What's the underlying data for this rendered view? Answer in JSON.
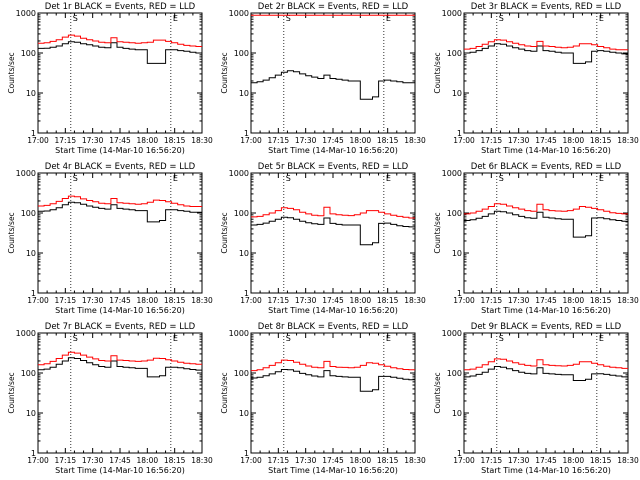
{
  "figure": {
    "description_free": true
  },
  "chart_data": [
    {
      "type": "line",
      "title": "Det 1r BLACK = Events, RED = LLD",
      "xlabel": "Start Time (14-Mar-10 16:56:20)",
      "ylabel": "Counts/sec",
      "yscale": "log",
      "ylim": [
        1,
        1000
      ],
      "yticks": [
        "1",
        "10",
        "100",
        "1000"
      ],
      "xlim": [
        0,
        100
      ],
      "xticks": [
        "17:00",
        "17:15",
        "17:30",
        "17:45",
        "18:00",
        "18:15",
        "18:30"
      ],
      "markers": [
        {
          "x": 20,
          "label": "S"
        },
        {
          "x": 81,
          "label": "E"
        }
      ],
      "series": [
        {
          "name": "Events",
          "color": "#000000",
          "values": [
            130,
            132,
            140,
            150,
            170,
            190,
            185,
            170,
            160,
            150,
            140,
            135,
            180,
            140,
            130,
            125,
            120,
            120,
            55,
            55,
            55,
            120,
            120,
            115,
            110,
            105,
            100
          ]
        },
        {
          "name": "LLD",
          "color": "#ff0000",
          "values": [
            175,
            180,
            195,
            215,
            250,
            280,
            265,
            235,
            215,
            200,
            185,
            180,
            240,
            190,
            185,
            180,
            175,
            180,
            185,
            210,
            210,
            195,
            180,
            165,
            155,
            150,
            145
          ]
        }
      ]
    },
    {
      "type": "line",
      "title": "Det 2r BLACK = Events, RED = LLD",
      "xlabel": "Start Time (14-Mar-10 16:56:20)",
      "ylabel": "Counts/sec",
      "yscale": "log",
      "ylim": [
        1,
        1000
      ],
      "yticks": [
        "1",
        "10",
        "100",
        "1000"
      ],
      "xlim": [
        0,
        100
      ],
      "xticks": [
        "17:00",
        "17:15",
        "17:30",
        "17:45",
        "18:00",
        "18:15",
        "18:30"
      ],
      "markers": [
        {
          "x": 20,
          "label": "S"
        },
        {
          "x": 81,
          "label": "E"
        }
      ],
      "series": [
        {
          "name": "Events",
          "color": "#000000",
          "values": [
            18,
            19,
            21,
            24,
            28,
            33,
            36,
            34,
            30,
            27,
            25,
            23,
            28,
            23,
            22,
            21,
            20,
            20,
            7,
            7,
            8,
            20,
            21,
            20,
            19,
            18,
            18
          ]
        },
        {
          "name": "LLD",
          "color": "#ff0000",
          "values": [
            880,
            880,
            880,
            880,
            880,
            880,
            880,
            880,
            880,
            880,
            880,
            880,
            880,
            880,
            880,
            880,
            880,
            880,
            880,
            880,
            880,
            880,
            880,
            880,
            880,
            880,
            880
          ]
        }
      ]
    },
    {
      "type": "line",
      "title": "Det 3r BLACK = Events, RED = LLD",
      "xlabel": "Start Time (14-Mar-10 16:56:20)",
      "ylabel": "Counts/sec",
      "yscale": "log",
      "ylim": [
        1,
        1000
      ],
      "yticks": [
        "1",
        "10",
        "100",
        "1000"
      ],
      "xlim": [
        0,
        100
      ],
      "xticks": [
        "17:00",
        "17:15",
        "17:30",
        "17:45",
        "18:00",
        "18:15",
        "18:30"
      ],
      "markers": [
        {
          "x": 20,
          "label": "S"
        },
        {
          "x": 81,
          "label": "E"
        }
      ],
      "series": [
        {
          "name": "Events",
          "color": "#000000",
          "values": [
            100,
            105,
            115,
            130,
            150,
            170,
            165,
            150,
            135,
            125,
            115,
            110,
            150,
            115,
            110,
            105,
            100,
            100,
            55,
            55,
            60,
            110,
            115,
            110,
            105,
            100,
            95
          ]
        },
        {
          "name": "LLD",
          "color": "#ff0000",
          "values": [
            125,
            130,
            145,
            165,
            190,
            215,
            210,
            190,
            175,
            160,
            150,
            145,
            195,
            150,
            145,
            140,
            135,
            140,
            150,
            170,
            170,
            160,
            145,
            135,
            125,
            120,
            120
          ]
        }
      ]
    },
    {
      "type": "line",
      "title": "Det 4r BLACK = Events, RED = LLD",
      "xlabel": "Start Time (14-Mar-10 16:56:20)",
      "ylabel": "Counts/sec",
      "yscale": "log",
      "ylim": [
        1,
        1000
      ],
      "yticks": [
        "1",
        "10",
        "100",
        "1000"
      ],
      "xlim": [
        0,
        100
      ],
      "xticks": [
        "17:00",
        "17:15",
        "17:30",
        "17:45",
        "18:00",
        "18:15",
        "18:30"
      ],
      "markers": [
        {
          "x": 20,
          "label": "S"
        },
        {
          "x": 81,
          "label": "E"
        }
      ],
      "series": [
        {
          "name": "Events",
          "color": "#000000",
          "values": [
            110,
            112,
            120,
            135,
            160,
            185,
            180,
            165,
            150,
            140,
            130,
            125,
            160,
            130,
            125,
            120,
            115,
            115,
            60,
            60,
            65,
            120,
            120,
            115,
            110,
            105,
            105
          ]
        },
        {
          "name": "LLD",
          "color": "#ff0000",
          "values": [
            150,
            155,
            170,
            195,
            230,
            265,
            255,
            225,
            205,
            190,
            175,
            170,
            230,
            180,
            175,
            170,
            165,
            170,
            185,
            210,
            205,
            190,
            175,
            160,
            150,
            145,
            145
          ]
        }
      ]
    },
    {
      "type": "line",
      "title": "Det 5r BLACK = Events, RED = LLD",
      "xlabel": "Start Time (14-Mar-10 16:56:20)",
      "ylabel": "Counts/sec",
      "yscale": "log",
      "ylim": [
        1,
        1000
      ],
      "yticks": [
        "1",
        "10",
        "100",
        "1000"
      ],
      "xlim": [
        0,
        100
      ],
      "xticks": [
        "17:00",
        "17:15",
        "17:30",
        "17:45",
        "18:00",
        "18:15",
        "18:30"
      ],
      "markers": [
        {
          "x": 20,
          "label": "S"
        },
        {
          "x": 81,
          "label": "E"
        }
      ],
      "series": [
        {
          "name": "Events",
          "color": "#000000",
          "values": [
            50,
            52,
            56,
            62,
            70,
            78,
            76,
            70,
            62,
            57,
            54,
            52,
            75,
            55,
            52,
            50,
            50,
            50,
            16,
            16,
            18,
            55,
            56,
            52,
            48,
            46,
            45
          ]
        },
        {
          "name": "LLD",
          "color": "#ff0000",
          "values": [
            80,
            82,
            90,
            100,
            115,
            135,
            130,
            120,
            105,
            95,
            88,
            85,
            140,
            95,
            90,
            88,
            86,
            90,
            100,
            115,
            115,
            105,
            95,
            88,
            82,
            78,
            75
          ]
        }
      ]
    },
    {
      "type": "line",
      "title": "Det 6r BLACK = Events, RED = LLD",
      "xlabel": "Start Time (14-Mar-10 16:56:20)",
      "ylabel": "Counts/sec",
      "yscale": "log",
      "ylim": [
        1,
        1000
      ],
      "yticks": [
        "1",
        "10",
        "100",
        "1000"
      ],
      "xlim": [
        0,
        100
      ],
      "xticks": [
        "17:00",
        "17:15",
        "17:30",
        "17:45",
        "18:00",
        "18:15",
        "18:30"
      ],
      "markers": [
        {
          "x": 20,
          "label": "S"
        },
        {
          "x": 81,
          "label": "E"
        }
      ],
      "series": [
        {
          "name": "Events",
          "color": "#000000",
          "values": [
            65,
            68,
            74,
            82,
            95,
            110,
            108,
            100,
            90,
            82,
            76,
            74,
            105,
            78,
            75,
            72,
            70,
            70,
            25,
            25,
            27,
            75,
            76,
            72,
            68,
            65,
            62
          ]
        },
        {
          "name": "LLD",
          "color": "#ff0000",
          "values": [
            95,
            100,
            110,
            125,
            145,
            170,
            165,
            150,
            135,
            125,
            115,
            110,
            165,
            120,
            115,
            112,
            110,
            115,
            125,
            145,
            140,
            130,
            120,
            110,
            102,
            98,
            95
          ]
        }
      ]
    },
    {
      "type": "line",
      "title": "Det 7r BLACK = Events, RED = LLD",
      "xlabel": "Start Time (14-Mar-10 16:56:20)",
      "ylabel": "Counts/sec",
      "yscale": "log",
      "ylim": [
        1,
        1000
      ],
      "yticks": [
        "1",
        "10",
        "100",
        "1000"
      ],
      "xlim": [
        0,
        100
      ],
      "xticks": [
        "17:00",
        "17:15",
        "17:30",
        "17:45",
        "18:00",
        "18:15",
        "18:30"
      ],
      "markers": [
        {
          "x": 20,
          "label": "S"
        },
        {
          "x": 81,
          "label": "E"
        }
      ],
      "series": [
        {
          "name": "Events",
          "color": "#000000",
          "values": [
            120,
            125,
            140,
            165,
            200,
            240,
            230,
            205,
            180,
            160,
            145,
            140,
            200,
            145,
            140,
            135,
            130,
            130,
            80,
            80,
            85,
            140,
            140,
            135,
            128,
            122,
            118
          ]
        },
        {
          "name": "LLD",
          "color": "#ff0000",
          "values": [
            160,
            170,
            195,
            230,
            280,
            330,
            315,
            280,
            250,
            225,
            205,
            200,
            270,
            210,
            205,
            200,
            195,
            200,
            210,
            235,
            230,
            215,
            200,
            185,
            175,
            170,
            165
          ]
        }
      ]
    },
    {
      "type": "line",
      "title": "Det 8r BLACK = Events, RED = LLD",
      "xlabel": "Start Time (14-Mar-10 16:56:20)",
      "ylabel": "Counts/sec",
      "yscale": "log",
      "ylim": [
        1,
        1000
      ],
      "yticks": [
        "1",
        "10",
        "100",
        "1000"
      ],
      "xlim": [
        0,
        100
      ],
      "xticks": [
        "17:00",
        "17:15",
        "17:30",
        "17:45",
        "18:00",
        "18:15",
        "18:30"
      ],
      "markers": [
        {
          "x": 20,
          "label": "S"
        },
        {
          "x": 81,
          "label": "E"
        }
      ],
      "series": [
        {
          "name": "Events",
          "color": "#000000",
          "values": [
            75,
            78,
            85,
            95,
            108,
            122,
            120,
            110,
            98,
            90,
            84,
            80,
            115,
            85,
            82,
            80,
            78,
            78,
            35,
            35,
            38,
            82,
            82,
            78,
            74,
            70,
            68
          ]
        },
        {
          "name": "LLD",
          "color": "#ff0000",
          "values": [
            115,
            120,
            135,
            155,
            180,
            210,
            205,
            185,
            165,
            150,
            140,
            135,
            195,
            145,
            140,
            138,
            135,
            140,
            155,
            180,
            175,
            160,
            148,
            135,
            128,
            122,
            120
          ]
        }
      ]
    },
    {
      "type": "line",
      "title": "Det 9r BLACK = Events, RED = LLD",
      "xlabel": "Start Time (14-Mar-10 16:56:20)",
      "ylabel": "Counts/sec",
      "yscale": "log",
      "ylim": [
        1,
        1000
      ],
      "yticks": [
        "1",
        "10",
        "100",
        "1000"
      ],
      "xlim": [
        0,
        100
      ],
      "xticks": [
        "17:00",
        "17:15",
        "17:30",
        "17:45",
        "18:00",
        "18:15",
        "18:30"
      ],
      "markers": [
        {
          "x": 20,
          "label": "S"
        },
        {
          "x": 81,
          "label": "E"
        }
      ],
      "series": [
        {
          "name": "Events",
          "color": "#000000",
          "values": [
            80,
            84,
            92,
            105,
            125,
            145,
            140,
            128,
            115,
            105,
            98,
            95,
            135,
            98,
            95,
            92,
            90,
            90,
            65,
            65,
            70,
            95,
            96,
            92,
            88,
            84,
            80
          ]
        },
        {
          "name": "LLD",
          "color": "#ff0000",
          "values": [
            120,
            125,
            140,
            160,
            190,
            225,
            220,
            200,
            180,
            165,
            155,
            150,
            215,
            160,
            155,
            152,
            150,
            155,
            165,
            190,
            190,
            175,
            160,
            148,
            140,
            135,
            130
          ]
        }
      ]
    }
  ]
}
